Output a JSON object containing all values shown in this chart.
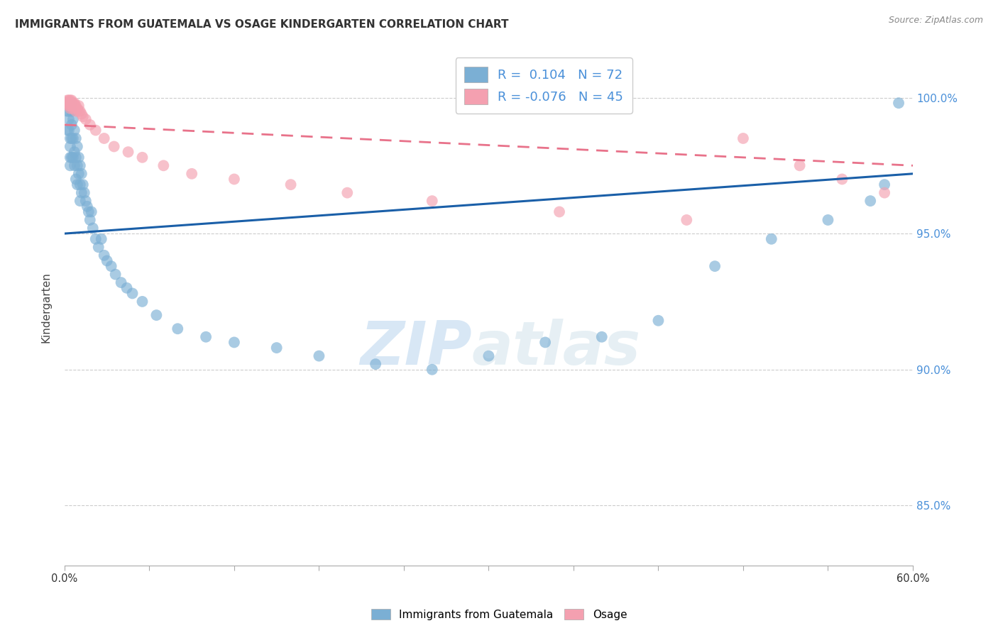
{
  "title": "IMMIGRANTS FROM GUATEMALA VS OSAGE KINDERGARTEN CORRELATION CHART",
  "source": "Source: ZipAtlas.com",
  "ylabel": "Kindergarten",
  "xmin": 0.0,
  "xmax": 0.6,
  "ymin": 0.828,
  "ymax": 1.018,
  "yticks": [
    0.85,
    0.9,
    0.95,
    1.0
  ],
  "ytick_labels": [
    "85.0%",
    "90.0%",
    "95.0%",
    "100.0%"
  ],
  "blue_r": "0.104",
  "blue_n": "72",
  "pink_r": "-0.076",
  "pink_n": "45",
  "legend_label_blue": "Immigrants from Guatemala",
  "legend_label_pink": "Osage",
  "blue_color": "#7bafd4",
  "pink_color": "#f4a0b0",
  "blue_line_color": "#1a5fa8",
  "pink_line_color": "#e8728a",
  "blue_line_y0": 0.95,
  "blue_line_y1": 0.972,
  "pink_line_y0": 0.99,
  "pink_line_y1": 0.975,
  "blue_scatter_x": [
    0.001,
    0.002,
    0.002,
    0.003,
    0.003,
    0.003,
    0.003,
    0.004,
    0.004,
    0.004,
    0.004,
    0.005,
    0.005,
    0.005,
    0.005,
    0.005,
    0.006,
    0.006,
    0.006,
    0.007,
    0.007,
    0.007,
    0.008,
    0.008,
    0.008,
    0.009,
    0.009,
    0.009,
    0.01,
    0.01,
    0.011,
    0.011,
    0.011,
    0.012,
    0.012,
    0.013,
    0.014,
    0.015,
    0.016,
    0.017,
    0.018,
    0.019,
    0.02,
    0.022,
    0.024,
    0.026,
    0.028,
    0.03,
    0.033,
    0.036,
    0.04,
    0.044,
    0.048,
    0.055,
    0.065,
    0.08,
    0.1,
    0.12,
    0.15,
    0.18,
    0.22,
    0.26,
    0.3,
    0.34,
    0.38,
    0.42,
    0.46,
    0.5,
    0.54,
    0.57,
    0.58,
    0.59
  ],
  "blue_scatter_y": [
    0.998,
    0.995,
    0.988,
    0.998,
    0.995,
    0.992,
    0.988,
    0.985,
    0.982,
    0.978,
    0.975,
    0.998,
    0.995,
    0.99,
    0.985,
    0.978,
    0.992,
    0.985,
    0.978,
    0.988,
    0.98,
    0.975,
    0.985,
    0.978,
    0.97,
    0.982,
    0.975,
    0.968,
    0.978,
    0.972,
    0.975,
    0.968,
    0.962,
    0.972,
    0.965,
    0.968,
    0.965,
    0.962,
    0.96,
    0.958,
    0.955,
    0.958,
    0.952,
    0.948,
    0.945,
    0.948,
    0.942,
    0.94,
    0.938,
    0.935,
    0.932,
    0.93,
    0.928,
    0.925,
    0.92,
    0.915,
    0.912,
    0.91,
    0.908,
    0.905,
    0.902,
    0.9,
    0.905,
    0.91,
    0.912,
    0.918,
    0.938,
    0.948,
    0.955,
    0.962,
    0.968,
    0.998
  ],
  "pink_scatter_x": [
    0.001,
    0.002,
    0.002,
    0.003,
    0.003,
    0.003,
    0.004,
    0.004,
    0.004,
    0.004,
    0.005,
    0.005,
    0.005,
    0.006,
    0.006,
    0.006,
    0.007,
    0.007,
    0.008,
    0.008,
    0.009,
    0.01,
    0.01,
    0.011,
    0.012,
    0.013,
    0.015,
    0.018,
    0.022,
    0.028,
    0.035,
    0.045,
    0.055,
    0.07,
    0.09,
    0.12,
    0.16,
    0.2,
    0.26,
    0.35,
    0.44,
    0.48,
    0.52,
    0.55,
    0.58
  ],
  "pink_scatter_y": [
    0.998,
    0.999,
    0.998,
    0.999,
    0.998,
    0.997,
    0.999,
    0.998,
    0.997,
    0.996,
    0.999,
    0.998,
    0.997,
    0.998,
    0.997,
    0.996,
    0.998,
    0.997,
    0.997,
    0.995,
    0.996,
    0.997,
    0.995,
    0.995,
    0.994,
    0.993,
    0.992,
    0.99,
    0.988,
    0.985,
    0.982,
    0.98,
    0.978,
    0.975,
    0.972,
    0.97,
    0.968,
    0.965,
    0.962,
    0.958,
    0.955,
    0.985,
    0.975,
    0.97,
    0.965
  ],
  "watermark_zip": "ZIP",
  "watermark_atlas": "atlas",
  "grid_color": "#cccccc",
  "background_color": "#ffffff",
  "title_color": "#333333",
  "right_tick_color": "#4a90d9",
  "xtick_count": 11
}
